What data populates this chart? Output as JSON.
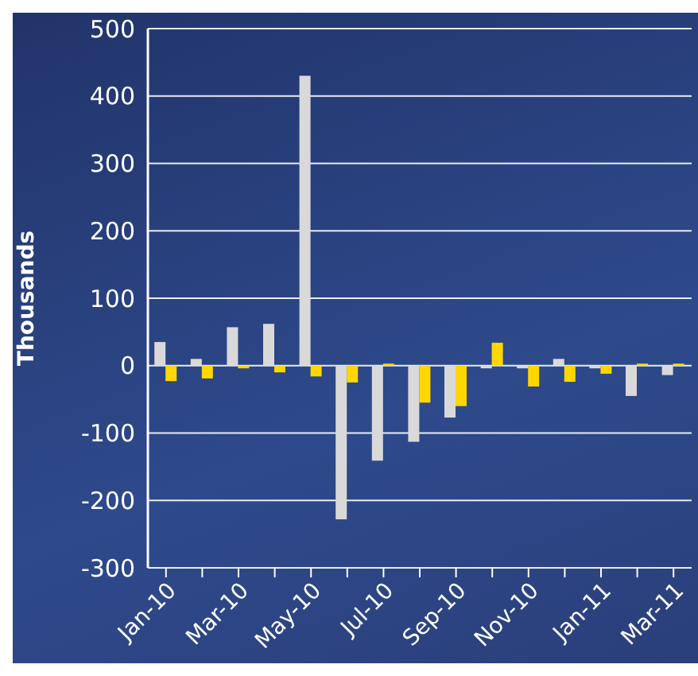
{
  "chart_data": {
    "type": "bar",
    "ylabel": "Thousands",
    "categories": [
      "Jan-10",
      null,
      "Mar-10",
      null,
      "May-10",
      null,
      "Jul-10",
      null,
      "Sep-10",
      null,
      "Nov-10",
      null,
      "Jan-11",
      null,
      "Mar-11"
    ],
    "series": [
      {
        "color": "#d9d9d9",
        "values": [
          35,
          10,
          57,
          62,
          430,
          -228,
          -141,
          -113,
          -77,
          -4,
          -4,
          10,
          -4,
          -45,
          -14
        ]
      },
      {
        "color": "#ffd700",
        "values": [
          -23,
          -19,
          -4,
          -10,
          -16,
          -25,
          3,
          -55,
          -60,
          34,
          -31,
          -24,
          -12,
          3,
          3
        ]
      }
    ],
    "ylim": [
      -300,
      500
    ],
    "yticks": [
      -300,
      -200,
      -100,
      0,
      100,
      200,
      300,
      400,
      500
    ],
    "grid": "y"
  }
}
